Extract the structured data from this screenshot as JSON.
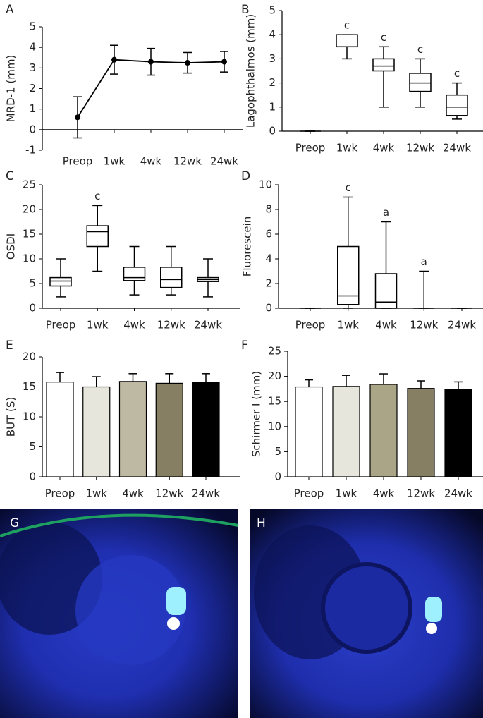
{
  "chart_data": [
    {
      "type": "line",
      "panel": "A",
      "ylabel": "MRD-1 (mm)",
      "categories": [
        "Preop",
        "1wk",
        "4wk",
        "12wk",
        "24wk"
      ],
      "values": [
        0.6,
        3.4,
        3.3,
        3.25,
        3.3
      ],
      "errors": [
        1.0,
        0.7,
        0.65,
        0.5,
        0.5
      ],
      "color": "#000000",
      "ylim": [
        -1,
        5
      ],
      "yticks": [
        -1,
        0,
        1,
        2,
        3,
        4,
        5
      ]
    },
    {
      "type": "box",
      "panel": "B",
      "ylabel": "Lagophthalmos (mm)",
      "categories": [
        "Preop",
        "1wk",
        "4wk",
        "12wk",
        "24wk"
      ],
      "min": [
        0,
        3,
        1,
        1,
        0.5
      ],
      "q1": [
        0,
        3.5,
        2.5,
        1.65,
        0.65
      ],
      "median": [
        0,
        3.5,
        2.7,
        2,
        1
      ],
      "q3": [
        0,
        4,
        3,
        2.4,
        1.5
      ],
      "max": [
        0,
        4,
        3.5,
        3,
        2
      ],
      "annotations": [
        null,
        "c",
        "c",
        "c",
        "c"
      ],
      "color": "#000000",
      "ylim": [
        0,
        5
      ],
      "yticks": [
        0,
        1,
        2,
        3,
        4,
        5
      ]
    },
    {
      "type": "box",
      "panel": "C",
      "ylabel": "OSDI",
      "categories": [
        "Preop",
        "1wk",
        "4wk",
        "12wk",
        "24wk"
      ],
      "min": [
        2.3,
        7.5,
        2.7,
        2.7,
        2.3
      ],
      "q1": [
        4.5,
        12.5,
        5.6,
        4.2,
        5.4
      ],
      "median": [
        5.5,
        15.5,
        6.2,
        5.8,
        5.8
      ],
      "q3": [
        6.2,
        16.7,
        8.3,
        8.3,
        6.2
      ],
      "max": [
        10,
        20.8,
        12.5,
        12.5,
        10
      ],
      "annotations": [
        null,
        "c",
        null,
        null,
        null
      ],
      "color": "#000000",
      "ylim": [
        0,
        25
      ],
      "yticks": [
        0,
        5,
        10,
        15,
        20,
        25
      ]
    },
    {
      "type": "box",
      "panel": "D",
      "ylabel": "Fluorescein",
      "categories": [
        "Preop",
        "1wk",
        "4wk",
        "12wk",
        "24wk"
      ],
      "min": [
        0,
        0,
        0,
        0,
        0
      ],
      "q1": [
        0,
        0.3,
        0,
        0,
        0
      ],
      "median": [
        0,
        1,
        0.5,
        0,
        0
      ],
      "q3": [
        0,
        5,
        2.8,
        0,
        0
      ],
      "max": [
        0,
        9,
        7,
        3,
        0
      ],
      "annotations": [
        null,
        "c",
        "a",
        "a",
        null
      ],
      "color": "#000000",
      "ylim": [
        0,
        10
      ],
      "yticks": [
        0,
        2,
        4,
        6,
        8,
        10
      ]
    },
    {
      "type": "bar",
      "panel": "E",
      "ylabel": "BUT (S)",
      "categories": [
        "Preop",
        "1wk",
        "4wk",
        "12wk",
        "24wk"
      ],
      "values": [
        15.8,
        15.0,
        15.9,
        15.6,
        15.8
      ],
      "errors": [
        1.6,
        1.7,
        1.3,
        1.6,
        1.4
      ],
      "colors": [
        "#ffffff",
        "#e6e6dc",
        "#bdb9a3",
        "#867f63",
        "#000000"
      ],
      "ylim": [
        0,
        20
      ],
      "yticks": [
        0,
        5,
        10,
        15,
        20
      ]
    },
    {
      "type": "bar",
      "panel": "F",
      "ylabel": "Schirmer I (mm)",
      "categories": [
        "Preop",
        "1wk",
        "4wk",
        "12wk",
        "24wk"
      ],
      "values": [
        17.9,
        18.0,
        18.4,
        17.6,
        17.4
      ],
      "errors": [
        1.4,
        2.2,
        2.1,
        1.5,
        1.5
      ],
      "colors": [
        "#ffffff",
        "#e6e6dc",
        "#aaa587",
        "#867f63",
        "#000000"
      ],
      "ylim": [
        0,
        25
      ],
      "yticks": [
        0,
        5,
        10,
        15,
        20,
        25
      ]
    }
  ],
  "images": [
    {
      "label": "G"
    },
    {
      "label": "H"
    }
  ]
}
